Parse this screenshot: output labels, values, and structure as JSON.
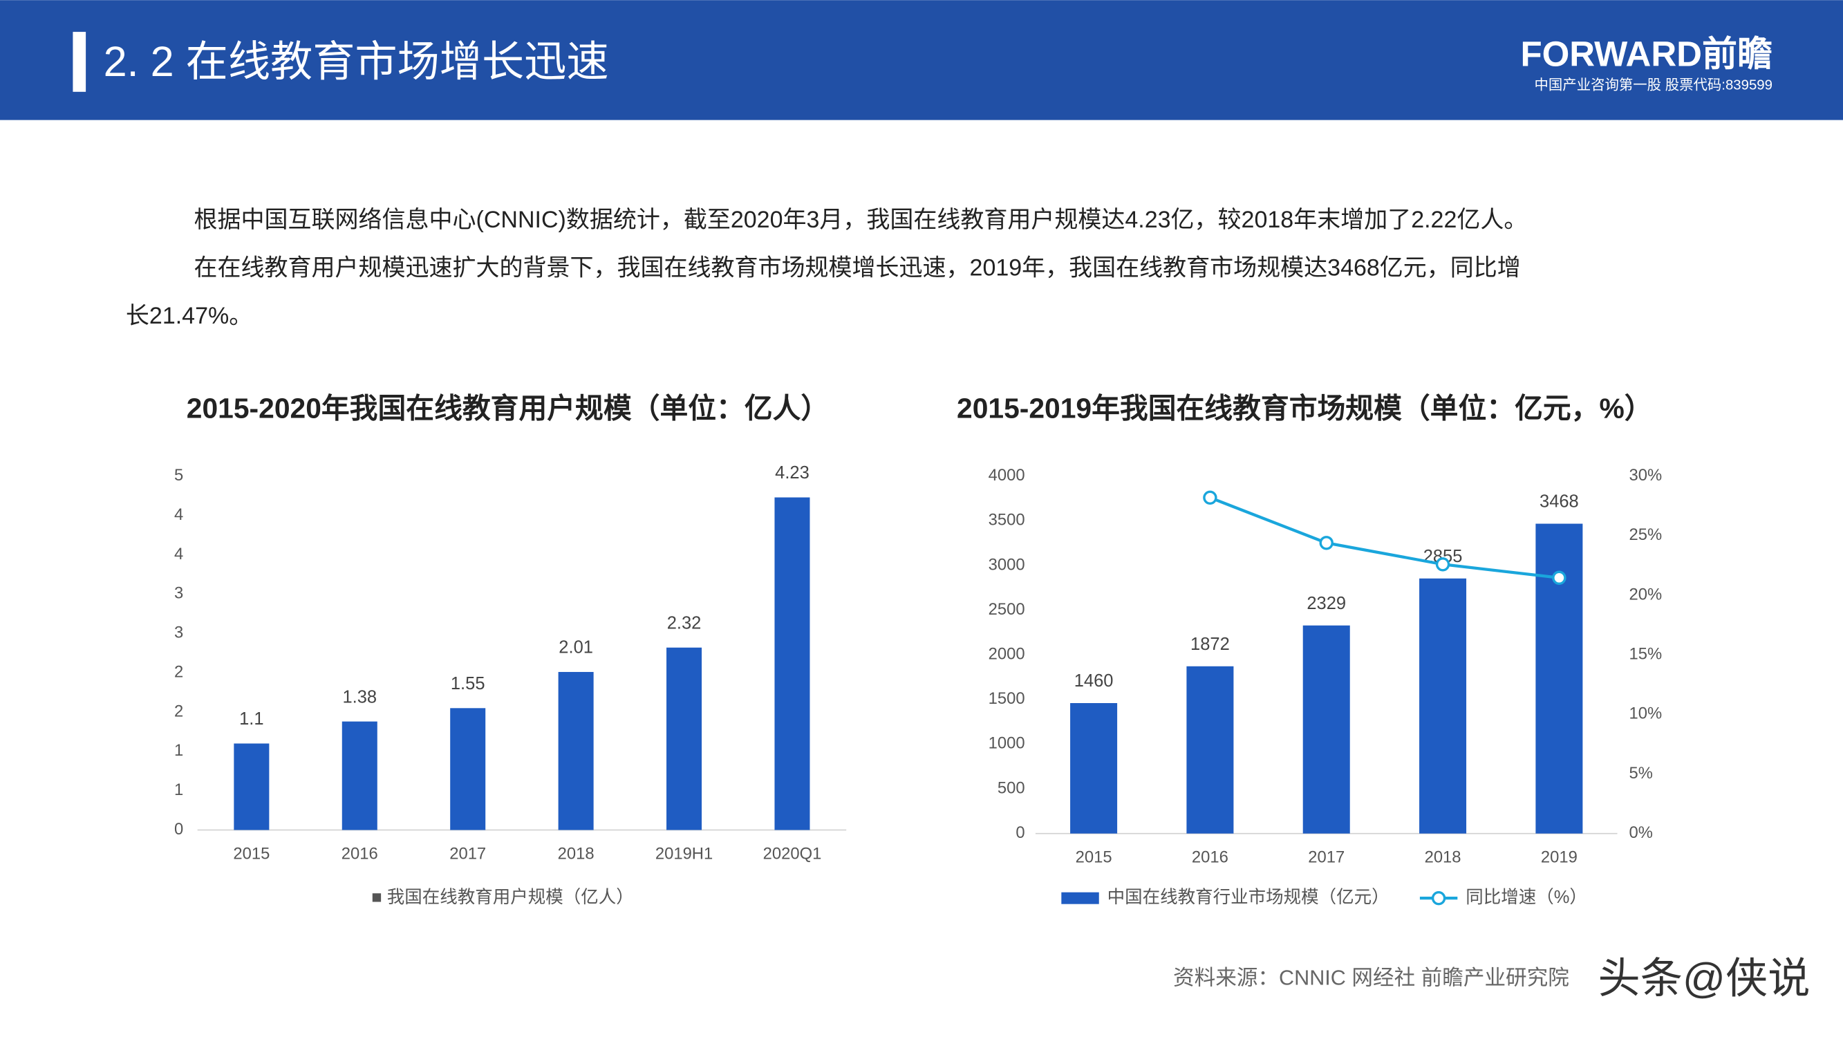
{
  "header": {
    "title": "2. 2  在线教育市场增长迅速",
    "logo": "FORWARD前瞻",
    "logo_subtitle": "中国产业咨询第一股  股票代码:839599"
  },
  "paragraphs": [
    "根据中国互联网络信息中心(CNNIC)数据统计，截至2020年3月，我国在线教育用户规模达4.23亿，较2018年末增加了2.22亿人。",
    "在在线教育用户规模迅速扩大的背景下，我国在线教育市场规模增长迅速，2019年，我国在线教育市场规模达3468亿元，同比增",
    "长21.47%。"
  ],
  "source": "资料来源：CNNIC  网经社  前瞻产业研究院",
  "watermark": "头条@侠说",
  "chart_data": [
    {
      "type": "bar",
      "title": "2015-2020年我国在线教育用户规模（单位：亿人）",
      "categories": [
        "2015",
        "2016",
        "2017",
        "2018",
        "2019H1",
        "2020Q1"
      ],
      "series": [
        {
          "name": "■ 我国在线教育用户规模（亿人）",
          "color": "#1f5cc2",
          "type": "bar",
          "values": [
            1.1,
            1.38,
            1.55,
            2.01,
            2.32,
            4.23
          ]
        }
      ],
      "ylim": [
        0,
        4.5
      ],
      "yticks": [
        0,
        {
          "value": 0.5,
          "label": "1"
        },
        1,
        {
          "value": 1.5,
          "label": "2"
        },
        2,
        {
          "value": 2.5,
          "label": "3"
        },
        3,
        {
          "value": 3.5,
          "label": "4"
        },
        4,
        {
          "value": 4.5,
          "label": "5"
        }
      ],
      "grid": false
    },
    {
      "type": "bar-line",
      "title": "2015-2019年我国在线教育市场规模（单位：亿元，%）",
      "categories": [
        "2015",
        "2016",
        "2017",
        "2018",
        "2019"
      ],
      "series": [
        {
          "name": "中国在线教育行业市场规模（亿元）",
          "color": "#1f5cc2",
          "type": "bar",
          "values": [
            1460,
            1872,
            2329,
            2855,
            3468
          ]
        },
        {
          "name": "同比增速（%）",
          "color": "#1aa6dc",
          "type": "line",
          "axis": "y2",
          "values": [
            null,
            28.2,
            24.4,
            22.6,
            21.47
          ]
        }
      ],
      "ylim": [
        0,
        4000
      ],
      "yticks": [
        0,
        500,
        1000,
        1500,
        2000,
        2500,
        3000,
        3500,
        4000
      ],
      "y2lim": [
        0,
        30
      ],
      "y2ticks": [
        {
          "value": 0,
          "label": "0%"
        },
        {
          "value": 5,
          "label": "5%"
        },
        {
          "value": 10,
          "label": "10%"
        },
        {
          "value": 15,
          "label": "15%"
        },
        {
          "value": 20,
          "label": "20%"
        },
        {
          "value": 25,
          "label": "25%"
        },
        {
          "value": 30,
          "label": "30%"
        }
      ],
      "grid": false
    }
  ]
}
